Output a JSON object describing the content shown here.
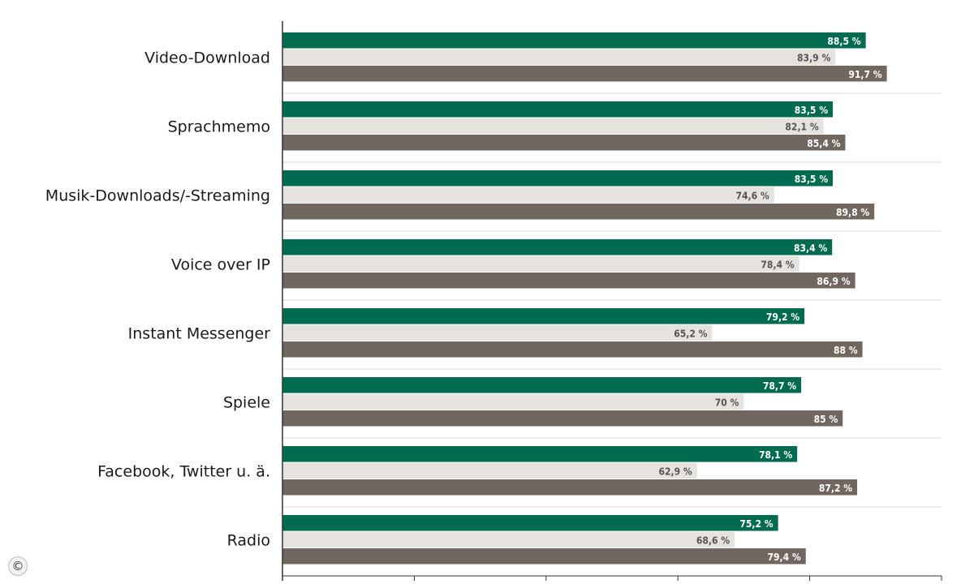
{
  "chart_data": {
    "type": "bar",
    "orientation": "horizontal",
    "categories": [
      "Video-Download",
      "Sprachmemo",
      "Musik-Downloads/-Streaming",
      "Voice over IP",
      "Instant Messenger",
      "Spiele",
      "Facebook, Twitter u. ä.",
      "Radio"
    ],
    "series": [
      {
        "values": [
          88.5,
          83.5,
          83.5,
          83.4,
          79.2,
          78.7,
          78.1,
          75.2
        ],
        "labels": [
          "88,5 %",
          "83,5 %",
          "83,5 %",
          "83,4 %",
          "79,2 %",
          "78,7 %",
          "78,1 %",
          "75,2 %"
        ],
        "color": "#006b4f",
        "label_color": "#ffffff"
      },
      {
        "values": [
          83.9,
          82.1,
          74.6,
          78.4,
          65.2,
          70,
          62.9,
          68.6
        ],
        "labels": [
          "83,9 %",
          "82,1 %",
          "74,6 %",
          "78,4 %",
          "65,2 %",
          "70 %",
          "62,9 %",
          "68,6 %"
        ],
        "color": "#e6e3df",
        "label_color": "#555555"
      },
      {
        "values": [
          91.7,
          85.4,
          89.8,
          86.9,
          88,
          85,
          87.2,
          79.4
        ],
        "labels": [
          "91,7 %",
          "85,4 %",
          "89,8 %",
          "86,9 %",
          "88 %",
          "85 %",
          "87,2 %",
          "79,4 %"
        ],
        "color": "#706860",
        "label_color": "#ffffff"
      }
    ],
    "xlim": [
      0,
      100
    ],
    "grid": true,
    "legend": "none"
  },
  "copyright_symbol": "©"
}
